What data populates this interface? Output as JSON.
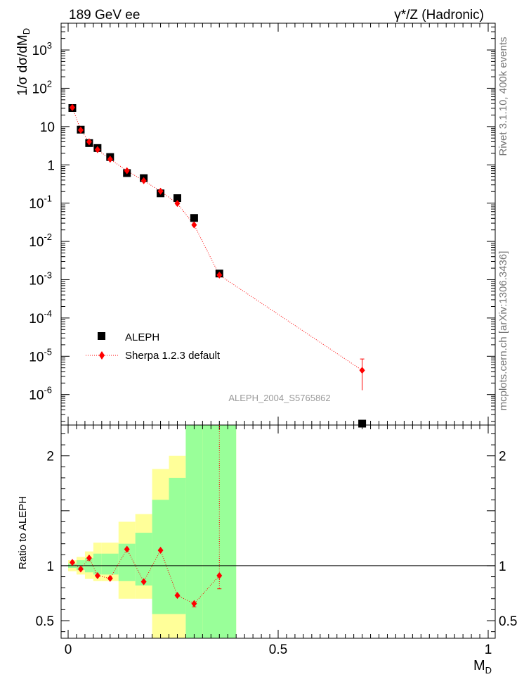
{
  "header": {
    "left_title": "189 GeV ee",
    "right_title": "γ*/Z (Hadronic)"
  },
  "side_labels": {
    "rivet": "Rivet 3.1.10, 400k events",
    "mcplots": "mcplots.cern.ch [arXiv:1306.3436]"
  },
  "analysis_id": "ALEPH_2004_S5765862",
  "colors": {
    "data": "#000000",
    "mc": "#ff0000",
    "band_inner": "#99ff99",
    "band_outer": "#ffff99"
  },
  "chart_data": [
    {
      "type": "scatter",
      "title": "189 GeV ee",
      "ylabel": "1/σ dσ/dM_D",
      "yscale": "log",
      "xlim": [
        0,
        1
      ],
      "ylim": [
        1.6e-07,
        5000
      ],
      "y_tick_labels": [
        "10^-6",
        "10^-5",
        "10^-4",
        "10^-3",
        "10^-2",
        "10^-1",
        "1",
        "10",
        "10^2",
        "10^3"
      ],
      "legend": {
        "position": "bottom-left",
        "entries": [
          "ALEPH",
          "Sherpa 1.2.3 default"
        ]
      },
      "series": [
        {
          "name": "ALEPH",
          "marker": "square",
          "points": [
            {
              "x": 0.01,
              "y": 30.5
            },
            {
              "x": 0.03,
              "y": 8.3
            },
            {
              "x": 0.05,
              "y": 3.7
            },
            {
              "x": 0.07,
              "y": 2.75
            },
            {
              "x": 0.1,
              "y": 1.6
            },
            {
              "x": 0.14,
              "y": 0.61
            },
            {
              "x": 0.18,
              "y": 0.45
            },
            {
              "x": 0.22,
              "y": 0.18
            },
            {
              "x": 0.26,
              "y": 0.135
            },
            {
              "x": 0.3,
              "y": 0.041
            },
            {
              "x": 0.36,
              "y": 0.00145
            },
            {
              "x": 0.7,
              "y": 1.6e-07
            }
          ]
        },
        {
          "name": "Sherpa 1.2.3 default",
          "marker": "diamond",
          "line": "dotted",
          "points": [
            {
              "x": 0.01,
              "y": 31.5
            },
            {
              "x": 0.03,
              "y": 8.1
            },
            {
              "x": 0.05,
              "y": 4.0
            },
            {
              "x": 0.07,
              "y": 2.5
            },
            {
              "x": 0.1,
              "y": 1.4
            },
            {
              "x": 0.14,
              "y": 0.7
            },
            {
              "x": 0.18,
              "y": 0.385
            },
            {
              "x": 0.22,
              "y": 0.205
            },
            {
              "x": 0.26,
              "y": 0.098
            },
            {
              "x": 0.3,
              "y": 0.027
            },
            {
              "x": 0.36,
              "y": 0.00132
            },
            {
              "x": 0.7,
              "y": 4.3e-06,
              "err_lo": 3e-06,
              "err_hi": 4.2e-06
            }
          ]
        }
      ]
    },
    {
      "type": "scatter",
      "ylabel": "Ratio to ALEPH",
      "xlabel": "M_D",
      "xlim": [
        0,
        1
      ],
      "ylim": [
        0.34,
        2.28
      ],
      "x_ticks": [
        "0",
        "0.5",
        "1"
      ],
      "y_ticks": [
        "0.5",
        "1",
        "2"
      ],
      "reference_line": 1,
      "bands": [
        {
          "x0": 0.0,
          "x1": 0.02,
          "inner": [
            0.98,
            1.02
          ],
          "outer": [
            0.95,
            1.05
          ]
        },
        {
          "x0": 0.02,
          "x1": 0.04,
          "inner": [
            0.96,
            1.05
          ],
          "outer": [
            0.92,
            1.08
          ]
        },
        {
          "x0": 0.04,
          "x1": 0.06,
          "inner": [
            0.94,
            1.07
          ],
          "outer": [
            0.88,
            1.13
          ]
        },
        {
          "x0": 0.06,
          "x1": 0.08,
          "inner": [
            0.92,
            1.11
          ],
          "outer": [
            0.86,
            1.21
          ]
        },
        {
          "x0": 0.08,
          "x1": 0.12,
          "inner": [
            0.92,
            1.11
          ],
          "outer": [
            0.86,
            1.21
          ]
        },
        {
          "x0": 0.12,
          "x1": 0.16,
          "inner": [
            0.86,
            1.2
          ],
          "outer": [
            0.7,
            1.4
          ]
        },
        {
          "x0": 0.16,
          "x1": 0.2,
          "inner": [
            0.82,
            1.3
          ],
          "outer": [
            0.7,
            1.47
          ]
        },
        {
          "x0": 0.2,
          "x1": 0.24,
          "inner": [
            0.56,
            1.6
          ],
          "outer": [
            0.34,
            1.88
          ]
        },
        {
          "x0": 0.24,
          "x1": 0.28,
          "inner": [
            0.56,
            1.8
          ],
          "outer": [
            0.34,
            2.0
          ]
        },
        {
          "x0": 0.28,
          "x1": 0.32,
          "inner": [
            0.34,
            2.28
          ],
          "outer": [
            0.34,
            2.28
          ]
        },
        {
          "x0": 0.32,
          "x1": 0.4,
          "inner": [
            0.34,
            2.28
          ],
          "outer": [
            0.34,
            2.28
          ]
        }
      ],
      "series": [
        {
          "name": "Sherpa 1.2.3 default / ALEPH",
          "marker": "diamond",
          "line": "dotted",
          "points": [
            {
              "x": 0.01,
              "y": 1.03
            },
            {
              "x": 0.03,
              "y": 0.97
            },
            {
              "x": 0.05,
              "y": 1.07
            },
            {
              "x": 0.07,
              "y": 0.91
            },
            {
              "x": 0.1,
              "y": 0.885
            },
            {
              "x": 0.14,
              "y": 1.15
            },
            {
              "x": 0.18,
              "y": 0.855
            },
            {
              "x": 0.22,
              "y": 1.14
            },
            {
              "x": 0.26,
              "y": 0.73
            },
            {
              "x": 0.3,
              "y": 0.655,
              "err_lo": 0.03,
              "err_hi": 0.03
            },
            {
              "x": 0.36,
              "y": 0.91,
              "err_lo": 0.12,
              "err_hi": 1.4
            }
          ]
        }
      ]
    }
  ]
}
